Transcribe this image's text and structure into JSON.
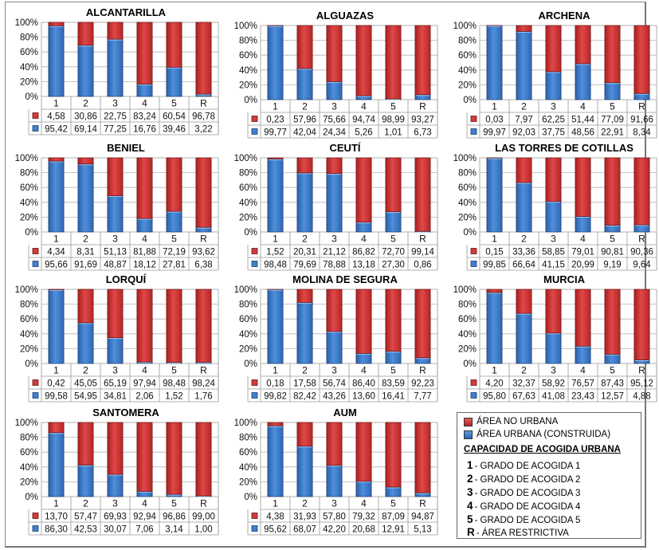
{
  "legend": {
    "series": [
      {
        "label": "ÁREA NO URBANA",
        "color": "#d23b3b"
      },
      {
        "label": "ÁREA URBANA (CONSTRUIDA)",
        "color": "#3f7fd0"
      }
    ],
    "heading": "CAPACIDAD DE ACOGIDA URBANA",
    "grades": [
      {
        "key": "1",
        "text": "- GRADO DE ACOGIDA 1"
      },
      {
        "key": "2",
        "text": "- GRADO DE ACOGIDA 2"
      },
      {
        "key": "3",
        "text": "- GRADO DE ACOGIDA 3"
      },
      {
        "key": "4",
        "text": "- GRADO DE ACOGIDA 4"
      },
      {
        "key": "5",
        "text": "- GRADO DE ACOGIDA 5"
      },
      {
        "key": "R",
        "text": "- ÁREA RESTRICTIVA"
      }
    ]
  },
  "chart_data": [
    {
      "type": "bar",
      "stacked": true,
      "title": "ALCANTARILLA",
      "categories": [
        "1",
        "2",
        "3",
        "4",
        "5",
        "R"
      ],
      "ylim": [
        0,
        100
      ],
      "yticks": [
        "0%",
        "20%",
        "40%",
        "60%",
        "80%",
        "100%"
      ],
      "series": [
        {
          "name": "ÁREA NO URBANA",
          "values": [
            "4,58",
            "30,86",
            "22,75",
            "83,24",
            "60,54",
            "96,78"
          ]
        },
        {
          "name": "ÁREA URBANA (CONSTRUIDA)",
          "values": [
            "95,42",
            "69,14",
            "77,25",
            "16,76",
            "39,46",
            "3,22"
          ]
        }
      ]
    },
    {
      "type": "bar",
      "stacked": true,
      "title": "ALGUAZAS",
      "categories": [
        "1",
        "2",
        "3",
        "4",
        "5",
        "R"
      ],
      "ylim": [
        0,
        100
      ],
      "yticks": [
        "0%",
        "20%",
        "40%",
        "60%",
        "80%",
        "100%"
      ],
      "series": [
        {
          "name": "ÁREA NO URBANA",
          "values": [
            "0,23",
            "57,96",
            "75,66",
            "94,74",
            "98,99",
            "93,27"
          ]
        },
        {
          "name": "ÁREA URBANA (CONSTRUIDA)",
          "values": [
            "99,77",
            "42,04",
            "24,34",
            "5,26",
            "1,01",
            "6,73"
          ]
        }
      ]
    },
    {
      "type": "bar",
      "stacked": true,
      "title": "ARCHENA",
      "categories": [
        "1",
        "2",
        "3",
        "4",
        "5",
        "R"
      ],
      "ylim": [
        0,
        100
      ],
      "yticks": [
        "0%",
        "20%",
        "40%",
        "60%",
        "80%",
        "100%"
      ],
      "series": [
        {
          "name": "ÁREA NO URBANA",
          "values": [
            "0,03",
            "7,97",
            "62,25",
            "51,44",
            "77,09",
            "91,66"
          ]
        },
        {
          "name": "ÁREA URBANA (CONSTRUIDA)",
          "values": [
            "99,97",
            "92,03",
            "37,75",
            "48,56",
            "22,91",
            "8,34"
          ]
        }
      ]
    },
    {
      "type": "bar",
      "stacked": true,
      "title": "BENIEL",
      "categories": [
        "1",
        "2",
        "3",
        "4",
        "5",
        "R"
      ],
      "ylim": [
        0,
        100
      ],
      "yticks": [
        "0%",
        "20%",
        "40%",
        "60%",
        "80%",
        "100%"
      ],
      "series": [
        {
          "name": "ÁREA NO URBANA",
          "values": [
            "4,34",
            "8,31",
            "51,13",
            "81,88",
            "72,19",
            "93,62"
          ]
        },
        {
          "name": "ÁREA URBANA (CONSTRUIDA)",
          "values": [
            "95,66",
            "91,69",
            "48,87",
            "18,12",
            "27,81",
            "6,38"
          ]
        }
      ]
    },
    {
      "type": "bar",
      "stacked": true,
      "title": "CEUTÍ",
      "categories": [
        "1",
        "2",
        "3",
        "4",
        "5",
        "R"
      ],
      "ylim": [
        0,
        100
      ],
      "yticks": [
        "0%",
        "20%",
        "40%",
        "60%",
        "80%",
        "100%"
      ],
      "series": [
        {
          "name": "ÁREA NO URBANA",
          "values": [
            "1,52",
            "20,31",
            "21,12",
            "86,82",
            "72,70",
            "99,14"
          ]
        },
        {
          "name": "ÁREA URBANA (CONSTRUIDA)",
          "values": [
            "98,48",
            "79,69",
            "78,88",
            "13,18",
            "27,30",
            "0,86"
          ]
        }
      ]
    },
    {
      "type": "bar",
      "stacked": true,
      "title": "LAS TORRES DE COTILLAS",
      "categories": [
        "1",
        "2",
        "3",
        "4",
        "5",
        "R"
      ],
      "ylim": [
        0,
        100
      ],
      "yticks": [
        "0%",
        "20%",
        "40%",
        "60%",
        "80%",
        "100%"
      ],
      "series": [
        {
          "name": "ÁREA NO URBANA",
          "values": [
            "0,15",
            "33,36",
            "58,85",
            "79,01",
            "90,81",
            "90,36"
          ]
        },
        {
          "name": "ÁREA URBANA (CONSTRUIDA)",
          "values": [
            "99,85",
            "66,64",
            "41,15",
            "20,99",
            "9,19",
            "9,64"
          ]
        }
      ]
    },
    {
      "type": "bar",
      "stacked": true,
      "title": "LORQUÍ",
      "categories": [
        "1",
        "2",
        "3",
        "4",
        "5",
        "R"
      ],
      "ylim": [
        0,
        100
      ],
      "yticks": [
        "0%",
        "20%",
        "40%",
        "60%",
        "80%",
        "100%"
      ],
      "series": [
        {
          "name": "ÁREA NO URBANA",
          "values": [
            "0,42",
            "45,05",
            "65,19",
            "97,94",
            "98,48",
            "98,24"
          ]
        },
        {
          "name": "ÁREA URBANA (CONSTRUIDA)",
          "values": [
            "99,58",
            "54,95",
            "34,81",
            "2,06",
            "1,52",
            "1,76"
          ]
        }
      ]
    },
    {
      "type": "bar",
      "stacked": true,
      "title": "MOLINA DE SEGURA",
      "categories": [
        "1",
        "2",
        "3",
        "4",
        "5",
        "R"
      ],
      "ylim": [
        0,
        100
      ],
      "yticks": [
        "0%",
        "20%",
        "40%",
        "60%",
        "80%",
        "100%"
      ],
      "series": [
        {
          "name": "ÁREA NO URBANA",
          "values": [
            "0,18",
            "17,58",
            "56,74",
            "86,40",
            "83,59",
            "92,23"
          ]
        },
        {
          "name": "ÁREA URBANA (CONSTRUIDA)",
          "values": [
            "99,82",
            "82,42",
            "43,26",
            "13,60",
            "16,41",
            "7,77"
          ]
        }
      ]
    },
    {
      "type": "bar",
      "stacked": true,
      "title": "MURCIA",
      "categories": [
        "1",
        "2",
        "3",
        "4",
        "5",
        "R"
      ],
      "ylim": [
        0,
        100
      ],
      "yticks": [
        "0%",
        "20%",
        "40%",
        "60%",
        "80%",
        "100%"
      ],
      "series": [
        {
          "name": "ÁREA NO URBANA",
          "values": [
            "4,20",
            "32,37",
            "58,92",
            "76,57",
            "87,43",
            "95,12"
          ]
        },
        {
          "name": "ÁREA URBANA (CONSTRUIDA)",
          "values": [
            "95,80",
            "67,63",
            "41,08",
            "23,43",
            "12,57",
            "4,88"
          ]
        }
      ]
    },
    {
      "type": "bar",
      "stacked": true,
      "title": "SANTOMERA",
      "categories": [
        "1",
        "2",
        "3",
        "4",
        "5",
        "R"
      ],
      "ylim": [
        0,
        100
      ],
      "yticks": [
        "0%",
        "20%",
        "40%",
        "60%",
        "80%",
        "100%"
      ],
      "series": [
        {
          "name": "ÁREA NO URBANA",
          "values": [
            "13,70",
            "57,47",
            "69,93",
            "92,94",
            "96,86",
            "99,00"
          ]
        },
        {
          "name": "ÁREA URBANA (CONSTRUIDA)",
          "values": [
            "86,30",
            "42,53",
            "30,07",
            "7,06",
            "3,14",
            "1,00"
          ]
        }
      ]
    },
    {
      "type": "bar",
      "stacked": true,
      "title": "AUM",
      "categories": [
        "1",
        "2",
        "3",
        "4",
        "5",
        "R"
      ],
      "ylim": [
        0,
        100
      ],
      "yticks": [
        "0%",
        "20%",
        "40%",
        "60%",
        "80%",
        "100%"
      ],
      "series": [
        {
          "name": "ÁREA NO URBANA",
          "values": [
            "4,38",
            "31,93",
            "57,80",
            "79,32",
            "87,09",
            "94,87"
          ]
        },
        {
          "name": "ÁREA URBANA (CONSTRUIDA)",
          "values": [
            "95,62",
            "68,07",
            "42,20",
            "20,68",
            "12,91",
            "5,13"
          ]
        }
      ]
    }
  ]
}
